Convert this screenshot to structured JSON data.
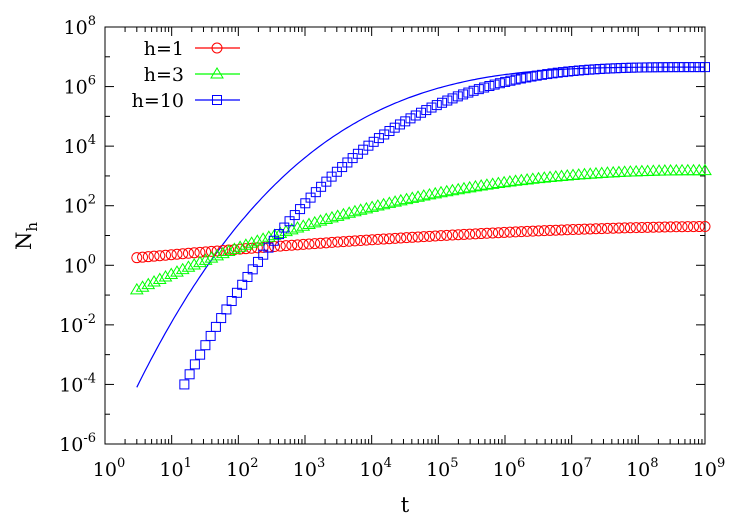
{
  "chart_data": {
    "type": "scatter",
    "title": "",
    "xlabel": "t",
    "ylabel": {
      "base": "N",
      "sub": "h"
    },
    "xscale": "log",
    "yscale": "log",
    "xlim": [
      1,
      1000000000
    ],
    "ylim": [
      1e-06,
      100000000
    ],
    "x_ticks": [
      {
        "base": "10",
        "exp": "0"
      },
      {
        "base": "10",
        "exp": "1"
      },
      {
        "base": "10",
        "exp": "2"
      },
      {
        "base": "10",
        "exp": "3"
      },
      {
        "base": "10",
        "exp": "4"
      },
      {
        "base": "10",
        "exp": "5"
      },
      {
        "base": "10",
        "exp": "6"
      },
      {
        "base": "10",
        "exp": "7"
      },
      {
        "base": "10",
        "exp": "8"
      },
      {
        "base": "10",
        "exp": "9"
      }
    ],
    "y_ticks": [
      {
        "base": "10",
        "exp": "-6"
      },
      {
        "base": "10",
        "exp": "-4"
      },
      {
        "base": "10",
        "exp": "-2"
      },
      {
        "base": "10",
        "exp": "0"
      },
      {
        "base": "10",
        "exp": "2"
      },
      {
        "base": "10",
        "exp": "4"
      },
      {
        "base": "10",
        "exp": "6"
      },
      {
        "base": "10",
        "exp": "8"
      }
    ],
    "grid": false,
    "legend_position": "top-left",
    "series": [
      {
        "name": "h=1",
        "color": "#ff0000",
        "marker": "circle",
        "x_range": [
          3,
          1000000000
        ],
        "points": 100,
        "y_start": 1.8,
        "y_end": 20
      },
      {
        "name": "h=3",
        "color": "#00ff00",
        "marker": "triangle",
        "x_range": [
          3,
          1000000000
        ],
        "points": 100,
        "y_start": 0.15,
        "y_end": 1500
      },
      {
        "name": "h=10",
        "color": "#0000ff",
        "marker": "square",
        "x_range": [
          15.5,
          1000000000
        ],
        "points": 100,
        "y_start": 0.0001,
        "y_end": 4500000
      }
    ],
    "curve": {
      "color": "#0000ff",
      "x_range": [
        3,
        1000000000
      ],
      "y_at_start": 8e-05,
      "y_at_end": 4500000
    }
  }
}
